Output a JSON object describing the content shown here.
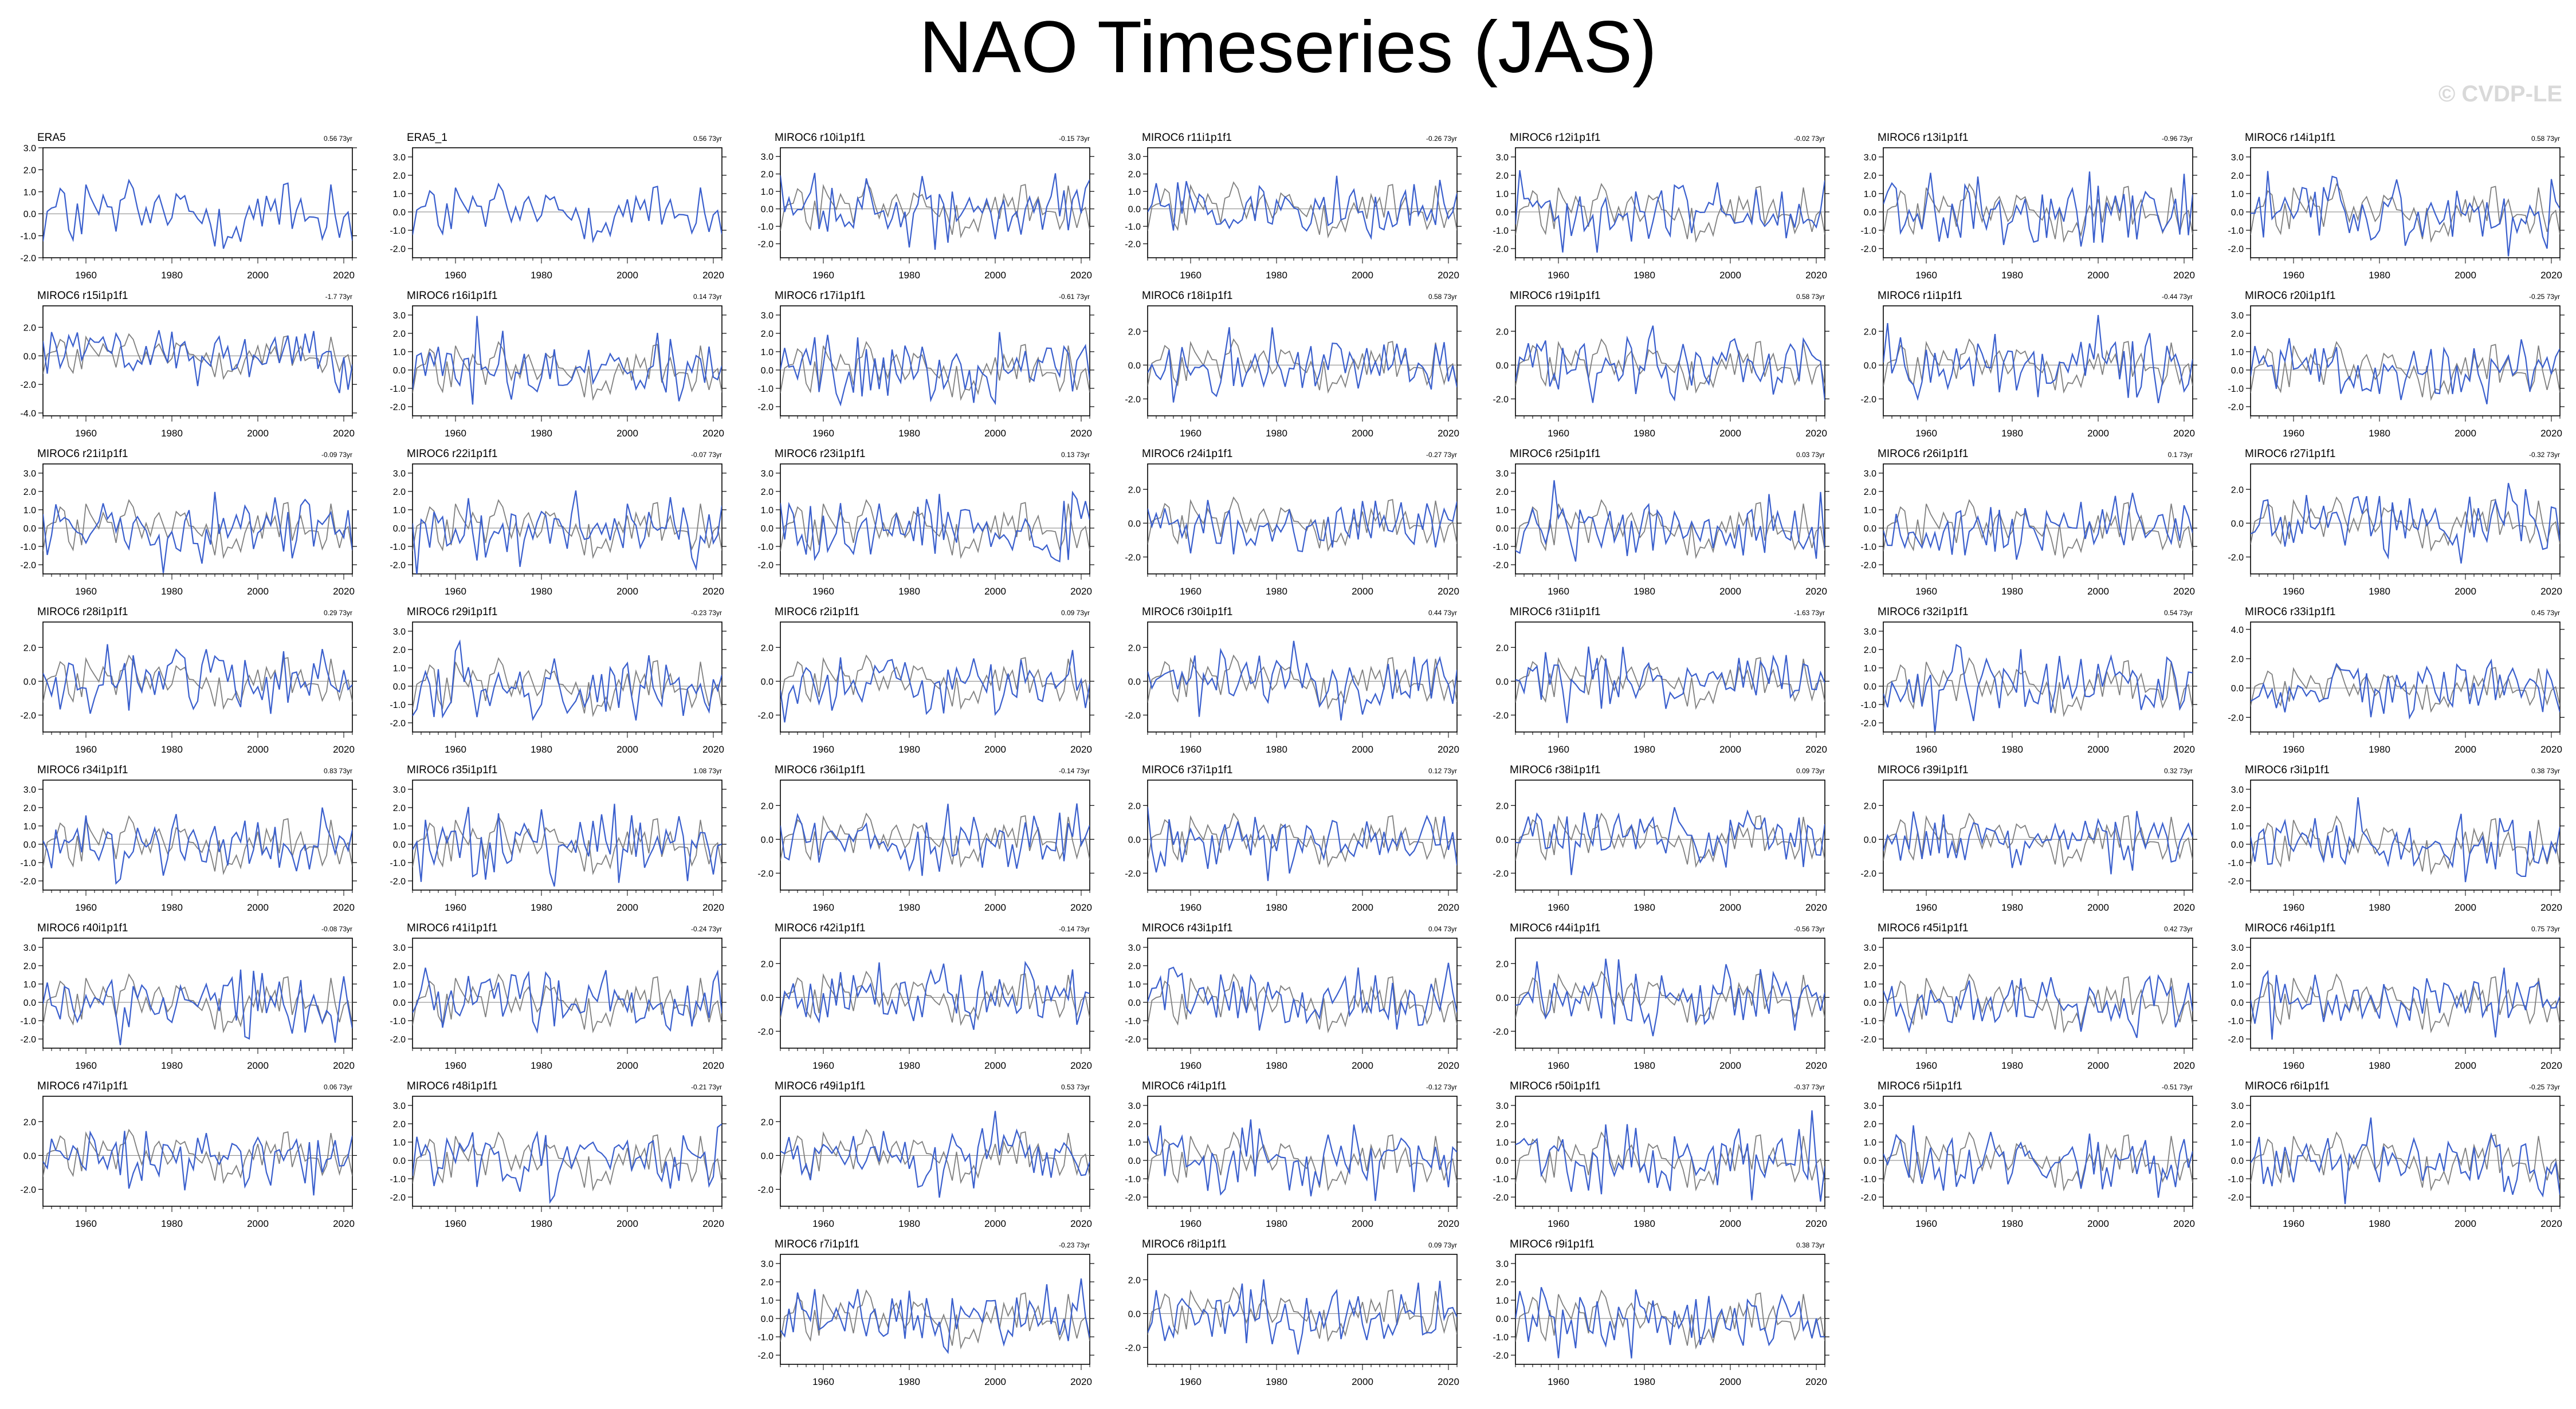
{
  "title": "NAO Timeseries (JAS)",
  "copyright": "© CVDP-LE",
  "colors": {
    "obs": "#000000",
    "member": "#2e6f8e",
    "model_line": "#3a5fcd",
    "obs_overlay": "#7f7f7f",
    "zero_line": "#808080"
  },
  "chart_data": {
    "type": "line",
    "x_range": [
      1950,
      2022
    ],
    "x_ticks": [
      "1960",
      "1980",
      "2000",
      "2020"
    ],
    "series_desc": "Each panel: blue line = member NAO index; gray line = ERA5 observed NAO index",
    "panels": [
      {
        "name": "ERA5",
        "trend": "0.56 73yr",
        "ylim": [
          -2.0,
          3.0
        ],
        "yticks": [
          "3.0",
          "2.0",
          "1.0",
          "0.0",
          "-1.0",
          "-2.0"
        ],
        "obs": true
      },
      {
        "name": "ERA5_1",
        "trend": "0.56 73yr",
        "ylim": [
          -2.5,
          3.5
        ],
        "yticks": [
          "3.0",
          "2.0",
          "1.0",
          "0.0",
          "-1.0",
          "-2.0"
        ],
        "obs": true
      },
      {
        "name": "MIROC6 r10i1p1f1",
        "trend": "-0.15 73yr",
        "ylim": [
          -2.8,
          3.5
        ],
        "yticks": [
          "3.0",
          "2.0",
          "1.0",
          "0.0",
          "-1.0",
          "-2.0"
        ]
      },
      {
        "name": "MIROC6 r11i1p1f1",
        "trend": "-0.26 73yr",
        "ylim": [
          -2.8,
          3.5
        ],
        "yticks": [
          "3.0",
          "2.0",
          "1.0",
          "0.0",
          "-1.0",
          "-2.0"
        ]
      },
      {
        "name": "MIROC6 r12i1p1f1",
        "trend": "-0.02 73yr",
        "ylim": [
          -2.5,
          3.5
        ],
        "yticks": [
          "3.0",
          "2.0",
          "1.0",
          "0.0",
          "-1.0",
          "-2.0"
        ]
      },
      {
        "name": "MIROC6 r13i1p1f1",
        "trend": "-0.96 73yr",
        "ylim": [
          -2.5,
          3.5
        ],
        "yticks": [
          "3.0",
          "2.0",
          "1.0",
          "0.0",
          "-1.0",
          "-2.0"
        ]
      },
      {
        "name": "MIROC6 r14i1p1f1",
        "trend": "0.58 73yr",
        "ylim": [
          -2.5,
          3.5
        ],
        "yticks": [
          "3.0",
          "2.0",
          "1.0",
          "0.0",
          "-1.0",
          "-2.0"
        ]
      },
      {
        "name": "MIROC6 r15i1p1f1",
        "trend": "-1.7 73yr",
        "ylim": [
          -4.2,
          3.5
        ],
        "yticks": [
          "2.0",
          "0.0",
          "-2.0",
          "-4.0"
        ]
      },
      {
        "name": "MIROC6 r16i1p1f1",
        "trend": "0.14 73yr",
        "ylim": [
          -2.5,
          3.5
        ],
        "yticks": [
          "3.0",
          "2.0",
          "1.0",
          "0.0",
          "-1.0",
          "-2.0"
        ]
      },
      {
        "name": "MIROC6 r17i1p1f1",
        "trend": "-0.61 73yr",
        "ylim": [
          -2.5,
          3.5
        ],
        "yticks": [
          "3.0",
          "2.0",
          "1.0",
          "0.0",
          "-1.0",
          "-2.0"
        ]
      },
      {
        "name": "MIROC6 r18i1p1f1",
        "trend": "0.58 73yr",
        "ylim": [
          -3.0,
          3.5
        ],
        "yticks": [
          "2.0",
          "0.0",
          "-2.0"
        ]
      },
      {
        "name": "MIROC6 r19i1p1f1",
        "trend": "0.58 73yr",
        "ylim": [
          -3.0,
          3.5
        ],
        "yticks": [
          "2.0",
          "0.0",
          "-2.0"
        ]
      },
      {
        "name": "MIROC6 r1i1p1f1",
        "trend": "-0.44 73yr",
        "ylim": [
          -3.0,
          3.5
        ],
        "yticks": [
          "2.0",
          "0.0",
          "-2.0"
        ]
      },
      {
        "name": "MIROC6 r20i1p1f1",
        "trend": "-0.25 73yr",
        "ylim": [
          -2.5,
          3.5
        ],
        "yticks": [
          "3.0",
          "2.0",
          "1.0",
          "0.0",
          "-1.0",
          "-2.0"
        ]
      },
      {
        "name": "MIROC6 r21i1p1f1",
        "trend": "-0.09 73yr",
        "ylim": [
          -2.5,
          3.5
        ],
        "yticks": [
          "3.0",
          "2.0",
          "1.0",
          "0.0",
          "-1.0",
          "-2.0"
        ]
      },
      {
        "name": "MIROC6 r22i1p1f1",
        "trend": "-0.07 73yr",
        "ylim": [
          -2.5,
          3.5
        ],
        "yticks": [
          "3.0",
          "2.0",
          "1.0",
          "0.0",
          "-1.0",
          "-2.0"
        ]
      },
      {
        "name": "MIROC6 r23i1p1f1",
        "trend": "0.13 73yr",
        "ylim": [
          -2.5,
          3.5
        ],
        "yticks": [
          "3.0",
          "2.0",
          "1.0",
          "0.0",
          "-1.0",
          "-2.0"
        ]
      },
      {
        "name": "MIROC6 r24i1p1f1",
        "trend": "-0.27 73yr",
        "ylim": [
          -3.0,
          3.5
        ],
        "yticks": [
          "2.0",
          "0.0",
          "-2.0"
        ]
      },
      {
        "name": "MIROC6 r25i1p1f1",
        "trend": "0.03 73yr",
        "ylim": [
          -2.5,
          3.5
        ],
        "yticks": [
          "3.0",
          "2.0",
          "1.0",
          "0.0",
          "-1.0",
          "-2.0"
        ]
      },
      {
        "name": "MIROC6 r26i1p1f1",
        "trend": "0.1 73yr",
        "ylim": [
          -2.5,
          3.5
        ],
        "yticks": [
          "3.0",
          "2.0",
          "1.0",
          "0.0",
          "-1.0",
          "-2.0"
        ]
      },
      {
        "name": "MIROC6 r27i1p1f1",
        "trend": "-0.32 73yr",
        "ylim": [
          -3.0,
          3.5
        ],
        "yticks": [
          "2.0",
          "0.0",
          "-2.0"
        ]
      },
      {
        "name": "MIROC6 r28i1p1f1",
        "trend": "0.29 73yr",
        "ylim": [
          -3.0,
          3.5
        ],
        "yticks": [
          "2.0",
          "0.0",
          "-2.0"
        ]
      },
      {
        "name": "MIROC6 r29i1p1f1",
        "trend": "-0.23 73yr",
        "ylim": [
          -2.5,
          3.5
        ],
        "yticks": [
          "3.0",
          "2.0",
          "1.0",
          "0.0",
          "-1.0",
          "-2.0"
        ]
      },
      {
        "name": "MIROC6 r2i1p1f1",
        "trend": "0.09 73yr",
        "ylim": [
          -3.0,
          3.5
        ],
        "yticks": [
          "2.0",
          "0.0",
          "-2.0"
        ]
      },
      {
        "name": "MIROC6 r30i1p1f1",
        "trend": "0.44 73yr",
        "ylim": [
          -3.0,
          3.5
        ],
        "yticks": [
          "2.0",
          "0.0",
          "-2.0"
        ]
      },
      {
        "name": "MIROC6 r31i1p1f1",
        "trend": "-1.63 73yr",
        "ylim": [
          -3.0,
          3.5
        ],
        "yticks": [
          "2.0",
          "0.0",
          "-2.0"
        ]
      },
      {
        "name": "MIROC6 r32i1p1f1",
        "trend": "0.54 73yr",
        "ylim": [
          -2.5,
          3.5
        ],
        "yticks": [
          "3.0",
          "2.0",
          "1.0",
          "0.0",
          "-1.0",
          "-2.0"
        ]
      },
      {
        "name": "MIROC6 r33i1p1f1",
        "trend": "0.45 73yr",
        "ylim": [
          -3.0,
          4.5
        ],
        "yticks": [
          "4.0",
          "2.0",
          "0.0",
          "-2.0"
        ]
      },
      {
        "name": "MIROC6 r34i1p1f1",
        "trend": "0.83 73yr",
        "ylim": [
          -2.5,
          3.5
        ],
        "yticks": [
          "3.0",
          "2.0",
          "1.0",
          "0.0",
          "-1.0",
          "-2.0"
        ]
      },
      {
        "name": "MIROC6 r35i1p1f1",
        "trend": "1.08 73yr",
        "ylim": [
          -2.5,
          3.5
        ],
        "yticks": [
          "3.0",
          "2.0",
          "1.0",
          "0.0",
          "-1.0",
          "-2.0"
        ]
      },
      {
        "name": "MIROC6 r36i1p1f1",
        "trend": "-0.14 73yr",
        "ylim": [
          -3.0,
          3.5
        ],
        "yticks": [
          "2.0",
          "0.0",
          "-2.0"
        ]
      },
      {
        "name": "MIROC6 r37i1p1f1",
        "trend": "0.12 73yr",
        "ylim": [
          -3.0,
          3.5
        ],
        "yticks": [
          "2.0",
          "0.0",
          "-2.0"
        ]
      },
      {
        "name": "MIROC6 r38i1p1f1",
        "trend": "0.09 73yr",
        "ylim": [
          -3.0,
          3.5
        ],
        "yticks": [
          "2.0",
          "0.0",
          "-2.0"
        ]
      },
      {
        "name": "MIROC6 r39i1p1f1",
        "trend": "0.32 73yr",
        "ylim": [
          -3.0,
          3.5
        ],
        "yticks": [
          "2.0",
          "0.0",
          "-2.0"
        ]
      },
      {
        "name": "MIROC6 r3i1p1f1",
        "trend": "0.38 73yr",
        "ylim": [
          -2.5,
          3.5
        ],
        "yticks": [
          "3.0",
          "2.0",
          "1.0",
          "0.0",
          "-1.0",
          "-2.0"
        ]
      },
      {
        "name": "MIROC6 r40i1p1f1",
        "trend": "-0.08 73yr",
        "ylim": [
          -2.5,
          3.5
        ],
        "yticks": [
          "3.0",
          "2.0",
          "1.0",
          "0.0",
          "-1.0",
          "-2.0"
        ]
      },
      {
        "name": "MIROC6 r41i1p1f1",
        "trend": "-0.24 73yr",
        "ylim": [
          -2.5,
          3.5
        ],
        "yticks": [
          "3.0",
          "2.0",
          "1.0",
          "0.0",
          "-1.0",
          "-2.0"
        ]
      },
      {
        "name": "MIROC6 r42i1p1f1",
        "trend": "-0.14 73yr",
        "ylim": [
          -3.0,
          3.5
        ],
        "yticks": [
          "2.0",
          "0.0",
          "-2.0"
        ]
      },
      {
        "name": "MIROC6 r43i1p1f1",
        "trend": "0.04 73yr",
        "ylim": [
          -2.5,
          3.5
        ],
        "yticks": [
          "3.0",
          "2.0",
          "1.0",
          "0.0",
          "-1.0",
          "-2.0"
        ]
      },
      {
        "name": "MIROC6 r44i1p1f1",
        "trend": "-0.56 73yr",
        "ylim": [
          -3.0,
          3.5
        ],
        "yticks": [
          "2.0",
          "0.0",
          "-2.0"
        ]
      },
      {
        "name": "MIROC6 r45i1p1f1",
        "trend": "0.42 73yr",
        "ylim": [
          -2.5,
          3.5
        ],
        "yticks": [
          "3.0",
          "2.0",
          "1.0",
          "0.0",
          "-1.0",
          "-2.0"
        ]
      },
      {
        "name": "MIROC6 r46i1p1f1",
        "trend": "0.75 73yr",
        "ylim": [
          -2.5,
          3.5
        ],
        "yticks": [
          "3.0",
          "2.0",
          "1.0",
          "0.0",
          "-1.0",
          "-2.0"
        ]
      },
      {
        "name": "MIROC6 r47i1p1f1",
        "trend": "0.06 73yr",
        "ylim": [
          -3.0,
          3.5
        ],
        "yticks": [
          "2.0",
          "0.0",
          "-2.0"
        ]
      },
      {
        "name": "MIROC6 r48i1p1f1",
        "trend": "-0.21 73yr",
        "ylim": [
          -2.5,
          3.5
        ],
        "yticks": [
          "3.0",
          "2.0",
          "1.0",
          "0.0",
          "-1.0",
          "-2.0"
        ]
      },
      {
        "name": "MIROC6 r49i1p1f1",
        "trend": "0.53 73yr",
        "ylim": [
          -3.0,
          3.5
        ],
        "yticks": [
          "2.0",
          "0.0",
          "-2.0"
        ]
      },
      {
        "name": "MIROC6 r4i1p1f1",
        "trend": "-0.12 73yr",
        "ylim": [
          -2.5,
          3.5
        ],
        "yticks": [
          "3.0",
          "2.0",
          "1.0",
          "0.0",
          "-1.0",
          "-2.0"
        ]
      },
      {
        "name": "MIROC6 r50i1p1f1",
        "trend": "-0.37 73yr",
        "ylim": [
          -2.5,
          3.5
        ],
        "yticks": [
          "3.0",
          "2.0",
          "1.0",
          "0.0",
          "-1.0",
          "-2.0"
        ]
      },
      {
        "name": "MIROC6 r5i1p1f1",
        "trend": "-0.51 73yr",
        "ylim": [
          -2.5,
          3.5
        ],
        "yticks": [
          "3.0",
          "2.0",
          "1.0",
          "0.0",
          "-1.0",
          "-2.0"
        ]
      },
      {
        "name": "MIROC6 r6i1p1f1",
        "trend": "-0.25 73yr",
        "ylim": [
          -2.5,
          3.5
        ],
        "yticks": [
          "3.0",
          "2.0",
          "1.0",
          "0.0",
          "-1.0",
          "-2.0"
        ]
      },
      {
        "name": "MIROC6 r7i1p1f1",
        "trend": "-0.23 73yr",
        "ylim": [
          -2.5,
          3.5
        ],
        "yticks": [
          "3.0",
          "2.0",
          "1.0",
          "0.0",
          "-1.0",
          "-2.0"
        ]
      },
      {
        "name": "MIROC6 r8i1p1f1",
        "trend": "0.09 73yr",
        "ylim": [
          -3.0,
          3.5
        ],
        "yticks": [
          "2.0",
          "0.0",
          "-2.0"
        ]
      },
      {
        "name": "MIROC6 r9i1p1f1",
        "trend": "0.38 73yr",
        "ylim": [
          -2.5,
          3.5
        ],
        "yticks": [
          "3.0",
          "2.0",
          "1.0",
          "0.0",
          "-1.0",
          "-2.0"
        ]
      }
    ]
  }
}
